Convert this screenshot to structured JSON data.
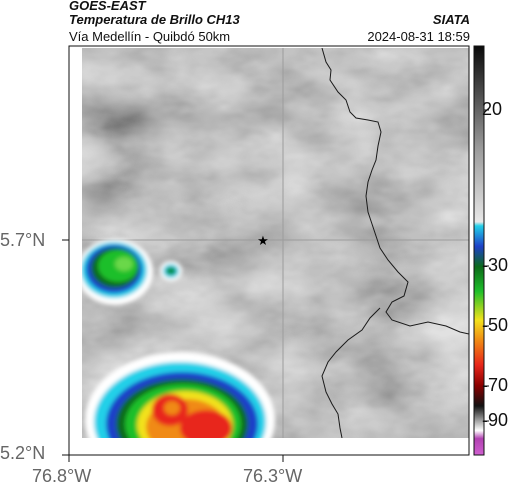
{
  "header": {
    "satellite": "GOES-EAST",
    "product": "Temperatura de Brillo CH13",
    "organization": "SIATA",
    "route": "Vía Medellín - Quibdó 50km",
    "timestamp": "2024-08-31 18:59"
  },
  "map": {
    "lat_labels": [
      "5.7°N",
      "5.2°N"
    ],
    "lon_labels": [
      "76.8°W",
      "76.3°W"
    ],
    "marker": "star-icon",
    "colors": {
      "cloud_gray": "#8a8a8a",
      "cold_green": "#1fbf2a",
      "cold_blue": "#1e78d8",
      "cold_red": "#e8261a",
      "cold_yellow": "#f2e21c",
      "cold_orange": "#f08a14"
    }
  },
  "colorbar": {
    "ticks": [
      "20",
      "-30",
      "-50",
      "-70",
      "-90"
    ],
    "unit": ""
  }
}
